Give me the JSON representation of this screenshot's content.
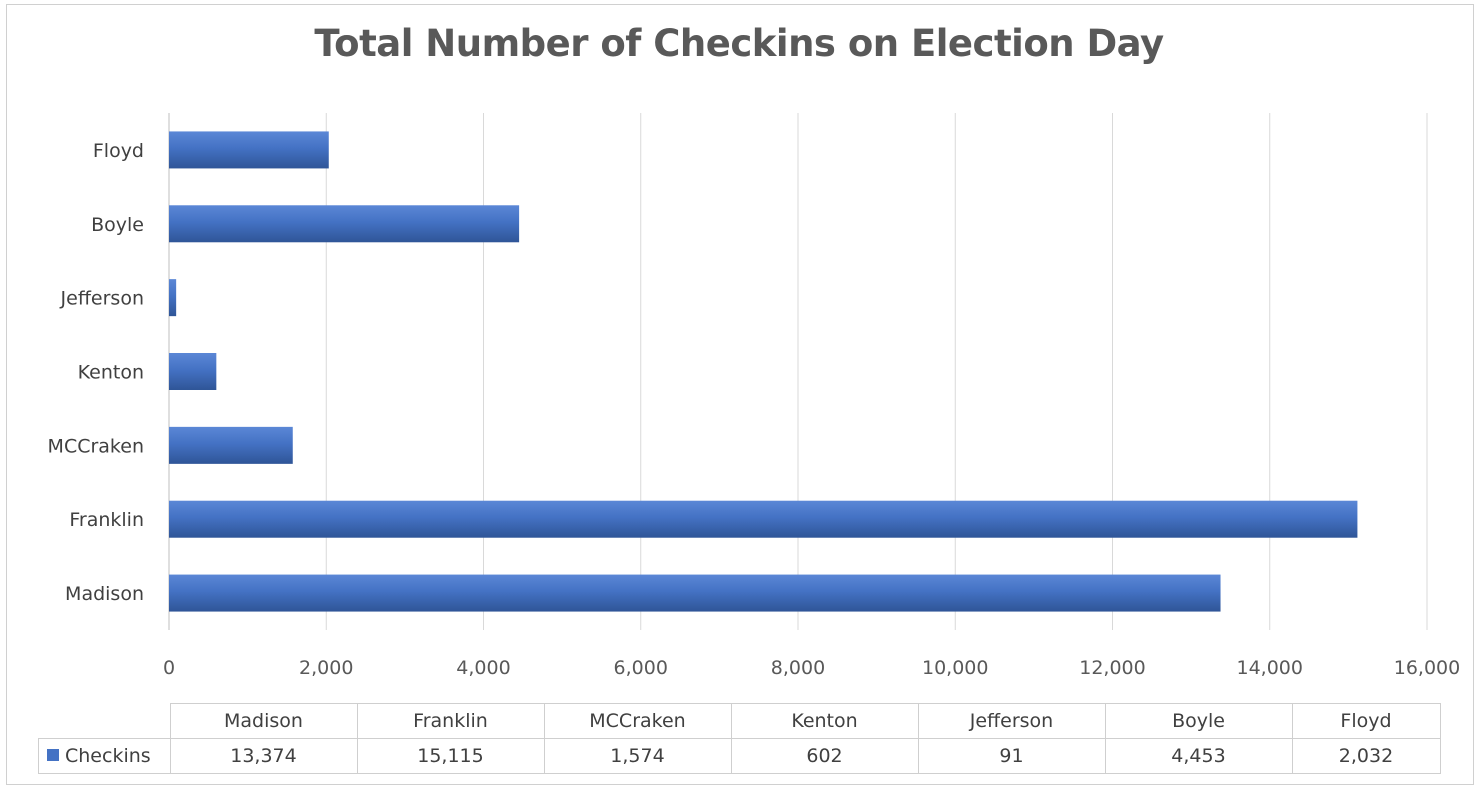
{
  "chart_data": {
    "type": "bar",
    "orientation": "horizontal",
    "title": "Total Number of Checkins on Election Day",
    "categories": [
      "Madison",
      "Franklin",
      "MCCraken",
      "Kenton",
      "Jefferson",
      "Boyle",
      "Floyd"
    ],
    "series": [
      {
        "name": "Checkins",
        "values": [
          13374,
          15115,
          1574,
          602,
          91,
          4453,
          2032
        ],
        "color": "#4472c4"
      }
    ],
    "xlim": [
      0,
      16000
    ],
    "x_ticks": [
      "0",
      "2,000",
      "4,000",
      "6,000",
      "8,000",
      "10,000",
      "12,000",
      "14,000",
      "16,000"
    ],
    "grid": "vertical",
    "data_table": {
      "series_label": "Checkins",
      "values_display": [
        "13,374",
        "15,115",
        "1,574",
        "602",
        "91",
        "4,453",
        "2,032"
      ]
    }
  }
}
